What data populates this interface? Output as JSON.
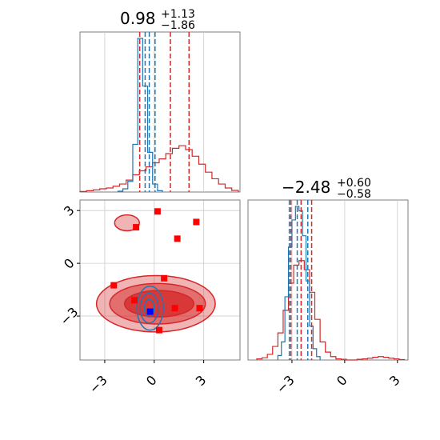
{
  "chart_data": [
    {
      "type": "histogram",
      "panel": "marginal-x",
      "title": {
        "value": "0.98",
        "plus": "+1.13",
        "minus": "−1.86"
      },
      "xlim": [
        -4.5,
        5.2
      ],
      "grid": true,
      "x_ticks": [
        -3,
        0,
        3
      ],
      "series": [
        {
          "color": "#d62728",
          "bin_edges": [
            -4.5,
            -4.1,
            -3.7,
            -3.3,
            -2.9,
            -2.5,
            -2.1,
            -1.7,
            -1.3,
            -0.9,
            -0.5,
            -0.1,
            0.3,
            0.7,
            1.1,
            1.5,
            1.9,
            2.3,
            2.7,
            3.1,
            3.5,
            3.9,
            4.3,
            4.7,
            5.1
          ],
          "heights": [
            0.2,
            0.5,
            0.8,
            1.2,
            1.5,
            2.2,
            3.0,
            4.5,
            6.5,
            8.0,
            9.5,
            11.0,
            12.5,
            14.5,
            16.5,
            17.5,
            16.0,
            13.5,
            10.5,
            7.5,
            5.0,
            3.0,
            1.5,
            0.6
          ],
          "quantiles": [
            -0.88,
            0.98,
            2.11
          ]
        },
        {
          "color": "#1f77b4",
          "bin_edges": [
            -2.2,
            -1.9,
            -1.6,
            -1.3,
            -1.0,
            -0.7,
            -0.4,
            -0.1,
            0.2,
            0.5
          ],
          "heights": [
            0.3,
            1.2,
            4.0,
            18.0,
            58.0,
            40.0,
            15.0,
            3.0,
            0.5
          ],
          "quantiles": [
            -0.55,
            -0.3,
            0.05
          ]
        }
      ]
    },
    {
      "type": "scatter",
      "panel": "joint",
      "xlim": [
        -4.5,
        5.2
      ],
      "ylim": [
        -5.5,
        3.6
      ],
      "grid": true,
      "x_ticks": [
        "−3",
        "0",
        "3"
      ],
      "y_ticks": [
        "3",
        "0",
        "−3"
      ],
      "markers_red": [
        {
          "x": 0.2,
          "y": 2.95
        },
        {
          "x": 2.55,
          "y": 2.35
        },
        {
          "x": -1.1,
          "y": 2.05
        },
        {
          "x": 1.4,
          "y": 1.4
        },
        {
          "x": 0.6,
          "y": -0.85
        },
        {
          "x": -2.45,
          "y": -1.25
        },
        {
          "x": -1.2,
          "y": -2.1
        },
        {
          "x": 1.25,
          "y": -2.55
        },
        {
          "x": 2.75,
          "y": -2.55
        },
        {
          "x": 0.3,
          "y": -3.8
        }
      ],
      "markers_blue": [
        {
          "x": -0.25,
          "y": -2.75
        }
      ],
      "contours_red": [
        {
          "cx": 0.1,
          "cy": -2.3,
          "rx": 3.6,
          "ry": 1.6,
          "fill_opacity": 0.35
        },
        {
          "cx": 0.2,
          "cy": -2.3,
          "rx": 2.9,
          "ry": 1.15,
          "fill_opacity": 0.5
        },
        {
          "cx": 0.3,
          "cy": -2.3,
          "rx": 2.1,
          "ry": 0.75,
          "fill_opacity": 0.75
        },
        {
          "cx": -1.65,
          "cy": 2.3,
          "rx": 0.75,
          "ry": 0.45,
          "fill_opacity": 0.35
        }
      ],
      "contours_blue": [
        {
          "cx": -0.25,
          "cy": -2.55,
          "rx": 0.8,
          "ry": 1.25
        },
        {
          "cx": -0.3,
          "cy": -2.55,
          "rx": 0.55,
          "ry": 0.85
        },
        {
          "cx": -0.3,
          "cy": -2.55,
          "rx": 0.3,
          "ry": 0.5
        }
      ]
    },
    {
      "type": "histogram",
      "panel": "marginal-y",
      "title": {
        "value": "−2.48",
        "plus": "+0.60",
        "minus": "−0.58"
      },
      "xlim": [
        -5.5,
        3.6
      ],
      "grid": true,
      "x_ticks": [
        "−3",
        "0",
        "3"
      ],
      "series": [
        {
          "color": "#d62728",
          "bin_edges": [
            -5.0,
            -4.7,
            -4.4,
            -4.1,
            -3.8,
            -3.5,
            -3.2,
            -2.9,
            -2.6,
            -2.3,
            -2.0,
            -1.7,
            -1.4,
            -1.1,
            -0.8,
            -0.5,
            -0.2,
            0.1,
            0.4,
            0.7,
            1.0,
            1.3,
            1.6,
            1.9,
            2.2,
            2.5,
            2.8,
            3.1,
            3.4
          ],
          "heights": [
            0.5,
            1.0,
            2.5,
            6.0,
            12.0,
            22.0,
            34.0,
            42.0,
            44.0,
            40.0,
            30.0,
            18.0,
            8.0,
            3.5,
            1.5,
            0.5,
            0.3,
            0.0,
            0.0,
            0.3,
            0.5,
            0.8,
            1.2,
            1.5,
            1.2,
            0.8,
            0.5,
            0.2
          ],
          "quantiles": [
            -3.06,
            -2.48,
            -1.88
          ]
        },
        {
          "color": "#1f77b4",
          "bin_edges": [
            -3.8,
            -3.6,
            -3.4,
            -3.2,
            -3.0,
            -2.8,
            -2.6,
            -2.4,
            -2.2,
            -2.0,
            -1.8,
            -1.6,
            -1.4
          ],
          "heights": [
            2.0,
            8.0,
            28.0,
            50.0,
            62.0,
            68.0,
            66.0,
            55.0,
            35.0,
            15.0,
            5.0,
            1.5
          ],
          "quantiles": [
            -3.15,
            -2.7,
            -2.1
          ]
        }
      ]
    }
  ]
}
